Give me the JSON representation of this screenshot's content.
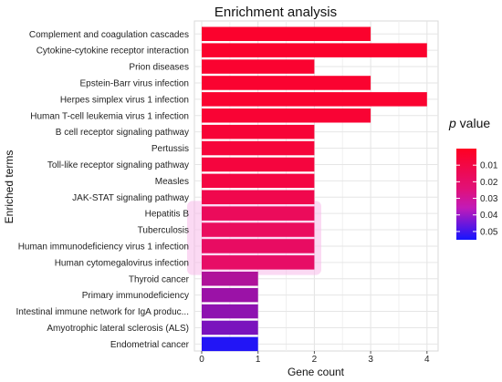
{
  "chart_data": {
    "type": "bar",
    "orientation": "horizontal",
    "title": "Enrichment analysis",
    "xlabel": "Gene count",
    "ylabel": "Enriched terms",
    "xlim": [
      0,
      4.25
    ],
    "xticks": [
      "0",
      "1",
      "2",
      "3",
      "4"
    ],
    "grid": true,
    "legend": {
      "title_italic": "p",
      "title_rest": " value",
      "placement": "right",
      "range": [
        0.0,
        0.055
      ],
      "ticks": [
        "0.01",
        "0.02",
        "0.03",
        "0.04",
        "0.05"
      ],
      "tick_values": [
        0.01,
        0.02,
        0.03,
        0.04,
        0.05
      ],
      "color_low": "#ff0022",
      "color_mid": "#e0117a",
      "color_high": "#1515ff"
    },
    "categories": [
      "Complement and coagulation cascades",
      "Cytokine-cytokine receptor interaction",
      "Prion diseases",
      "Epstein-Barr virus infection",
      "Herpes simplex virus 1 infection",
      "Human T-cell leukemia virus 1 infection",
      "B cell receptor signaling pathway",
      "Pertussis",
      "Toll-like receptor signaling pathway",
      "Measles",
      "JAK-STAT signaling pathway",
      "Hepatitis B",
      "Tuberculosis",
      "Human immunodeficiency virus 1 infection",
      "Human cytomegalovirus infection",
      "Thyroid cancer",
      "Primary immunodeficiency",
      "Intestinal immune network for IgA produc...",
      "Amyotrophic lateral sclerosis (ALS)",
      "Endometrial cancer"
    ],
    "values": [
      3,
      4,
      2,
      3,
      4,
      3,
      2,
      2,
      2,
      2,
      2,
      2,
      2,
      2,
      2,
      1,
      1,
      1,
      1,
      1
    ],
    "p_values": [
      0.003,
      0.003,
      0.004,
      0.004,
      0.004,
      0.005,
      0.006,
      0.007,
      0.008,
      0.009,
      0.012,
      0.016,
      0.017,
      0.018,
      0.019,
      0.032,
      0.035,
      0.037,
      0.04,
      0.053
    ]
  }
}
